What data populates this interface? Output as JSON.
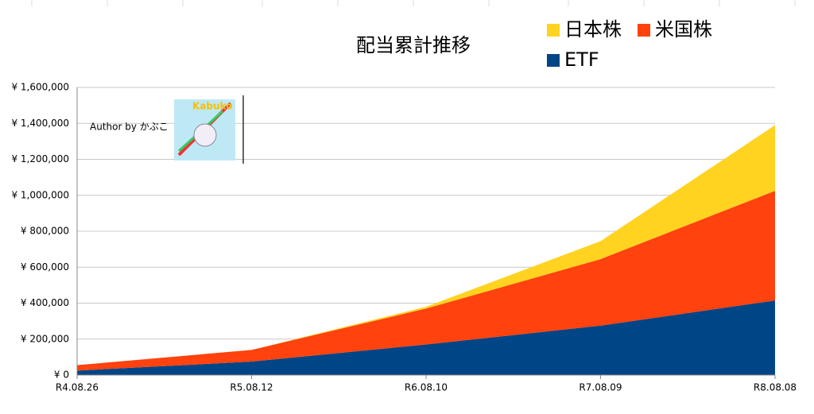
{
  "chart_data": {
    "type": "stacked_area",
    "title": "配当累計推移",
    "categories": [
      "R4.08.26",
      "R5.08.12",
      "R6.08.10",
      "R7.08.09",
      "R8.08.08"
    ],
    "series": [
      {
        "name": "日本株",
        "color": "#ffd320",
        "values": [
          0,
          0,
          10000,
          100000,
          365000
        ]
      },
      {
        "name": "米国株",
        "color": "#ff420e",
        "values": [
          30000,
          65000,
          200000,
          370000,
          610000
        ]
      },
      {
        "name": "ETF",
        "color": "#004586",
        "values": [
          25000,
          75000,
          170000,
          275000,
          415000
        ]
      }
    ],
    "ylim": [
      0,
      1600000
    ],
    "yticks": [
      {
        "value": 0,
        "label": "¥ 0"
      },
      {
        "value": 200000,
        "label": "¥ 200,000"
      },
      {
        "value": 400000,
        "label": "¥ 400,000"
      },
      {
        "value": 600000,
        "label": "¥ 600,000"
      },
      {
        "value": 800000,
        "label": "¥ 800,000"
      },
      {
        "value": 1000000,
        "label": "¥ 1,000,000"
      },
      {
        "value": 1200000,
        "label": "¥ 1,200,000"
      },
      {
        "value": 1400000,
        "label": "¥ 1,400,000"
      },
      {
        "value": 1600000,
        "label": "¥ 1,600,000"
      }
    ],
    "grid": true,
    "annotations": [
      "Author by かぶこ",
      "Kabuko"
    ]
  }
}
